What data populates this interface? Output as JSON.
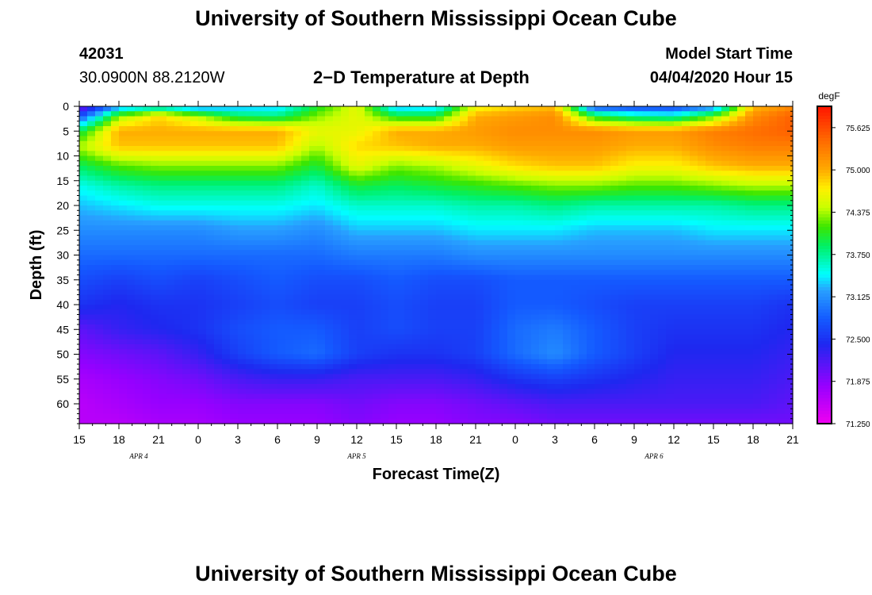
{
  "page": {
    "title_top": "University of Southern Mississippi Ocean Cube",
    "title_bottom": "University of Southern Mississippi Ocean Cube",
    "station_id": "42031",
    "station_coords": "30.0900N 88.2120W",
    "plot_title": "2−D Temperature at Depth",
    "model_start_label": "Model Start Time",
    "model_start_value": "04/04/2020 Hour 15"
  },
  "chart_data": {
    "type": "heatmap",
    "title": "2−D Temperature at Depth",
    "xlabel": "Forecast Time(Z)",
    "ylabel": "Depth (ft)",
    "x_ticks": [
      "15",
      "18",
      "21",
      "0",
      "3",
      "6",
      "9",
      "12",
      "15",
      "18",
      "21",
      "0",
      "3",
      "6",
      "9",
      "12",
      "15",
      "18",
      "21"
    ],
    "x_hours": [
      0,
      3,
      6,
      9,
      12,
      15,
      18,
      21,
      24,
      27,
      30,
      33,
      36,
      39,
      42,
      45,
      48,
      51,
      54
    ],
    "date_labels": [
      {
        "text": "APR 4",
        "hour": 4.5
      },
      {
        "text": "APR 5",
        "hour": 21
      },
      {
        "text": "APR 6",
        "hour": 43.5
      }
    ],
    "y_ticks": [
      0,
      5,
      10,
      15,
      20,
      25,
      30,
      35,
      40,
      45,
      50,
      55,
      60
    ],
    "ylim": [
      0,
      64
    ],
    "xlim": [
      0,
      54
    ],
    "colorbar": {
      "unit": "degF",
      "ticks": [
        "75.625",
        "75.000",
        "74.375",
        "73.750",
        "73.125",
        "72.500",
        "71.875",
        "71.250"
      ],
      "range": [
        71.25,
        75.94
      ]
    },
    "time_hours": [
      0,
      3,
      6,
      9,
      12,
      15,
      18,
      21,
      24,
      27,
      30,
      33,
      36,
      39,
      42,
      45,
      48,
      51,
      54
    ],
    "depths_ft": [
      0,
      2,
      5,
      8,
      12,
      16,
      20,
      25,
      30,
      35,
      40,
      45,
      50,
      55,
      60,
      64
    ],
    "temperature_degF": [
      [
        71.9,
        73.1,
        73.4,
        73.0,
        73.2,
        73.3,
        74.0,
        74.6,
        73.2,
        73.3,
        74.6,
        74.8,
        74.9,
        72.7,
        72.6,
        72.6,
        73.0,
        74.9,
        75.2
      ],
      [
        72.7,
        74.3,
        74.8,
        74.4,
        73.9,
        73.8,
        74.3,
        74.6,
        74.0,
        74.0,
        75.0,
        75.1,
        75.2,
        74.0,
        73.7,
        73.6,
        74.2,
        75.2,
        75.5
      ],
      [
        73.9,
        75.0,
        75.0,
        75.0,
        75.0,
        75.0,
        74.6,
        74.6,
        75.0,
        75.0,
        75.1,
        75.2,
        75.2,
        75.2,
        75.1,
        75.1,
        75.3,
        75.4,
        75.5
      ],
      [
        74.4,
        74.9,
        74.9,
        74.9,
        74.9,
        74.9,
        74.4,
        74.8,
        74.9,
        75.0,
        75.0,
        75.1,
        75.1,
        75.1,
        75.0,
        75.0,
        75.2,
        75.3,
        75.3
      ],
      [
        73.9,
        74.2,
        74.3,
        74.3,
        74.3,
        74.3,
        74.0,
        74.6,
        74.3,
        74.4,
        74.6,
        74.8,
        74.9,
        74.9,
        74.7,
        74.7,
        74.9,
        75.0,
        75.0
      ],
      [
        73.5,
        73.7,
        73.8,
        73.8,
        73.8,
        73.8,
        73.6,
        74.0,
        73.9,
        74.0,
        74.1,
        74.2,
        74.3,
        74.3,
        74.2,
        74.2,
        74.3,
        74.4,
        74.4
      ],
      [
        73.3,
        73.4,
        73.5,
        73.5,
        73.5,
        73.5,
        73.4,
        73.6,
        73.6,
        73.6,
        73.7,
        73.7,
        73.8,
        73.7,
        73.7,
        73.7,
        73.7,
        73.8,
        73.8
      ],
      [
        73.1,
        73.1,
        73.1,
        73.1,
        73.2,
        73.2,
        73.1,
        73.3,
        73.3,
        73.3,
        73.4,
        73.4,
        73.4,
        73.3,
        73.3,
        73.3,
        73.4,
        73.4,
        73.4
      ],
      [
        72.9,
        72.9,
        72.9,
        72.9,
        72.9,
        72.9,
        72.9,
        73.0,
        73.0,
        73.0,
        73.1,
        73.1,
        73.1,
        73.1,
        73.1,
        73.1,
        73.1,
        73.1,
        73.1
      ],
      [
        72.7,
        72.6,
        72.7,
        72.6,
        72.7,
        72.8,
        72.7,
        72.7,
        72.8,
        72.7,
        72.7,
        72.8,
        72.8,
        72.8,
        72.8,
        72.8,
        72.8,
        72.8,
        72.8
      ],
      [
        72.5,
        72.4,
        72.5,
        72.5,
        72.6,
        72.7,
        72.6,
        72.6,
        72.7,
        72.6,
        72.6,
        72.8,
        72.8,
        72.7,
        72.6,
        72.6,
        72.6,
        72.6,
        72.5
      ],
      [
        72.1,
        72.3,
        72.4,
        72.5,
        72.7,
        72.8,
        72.8,
        72.6,
        72.7,
        72.6,
        72.6,
        72.9,
        73.0,
        72.8,
        72.6,
        72.5,
        72.5,
        72.5,
        72.4
      ],
      [
        71.9,
        72.0,
        72.1,
        72.3,
        72.6,
        72.8,
        72.9,
        72.6,
        72.5,
        72.5,
        72.6,
        72.9,
        73.1,
        72.8,
        72.6,
        72.4,
        72.4,
        72.4,
        72.3
      ],
      [
        71.7,
        71.8,
        71.9,
        72.0,
        72.2,
        72.3,
        72.3,
        72.2,
        72.2,
        72.2,
        72.3,
        72.5,
        72.6,
        72.5,
        72.4,
        72.3,
        72.3,
        72.3,
        72.2
      ],
      [
        71.6,
        71.7,
        71.8,
        71.8,
        71.9,
        71.9,
        71.9,
        72.0,
        71.9,
        71.9,
        72.0,
        72.1,
        72.2,
        72.2,
        72.2,
        72.2,
        72.2,
        72.2,
        72.1
      ],
      [
        71.6,
        71.6,
        71.7,
        71.7,
        71.8,
        71.8,
        71.8,
        71.9,
        71.8,
        71.8,
        71.9,
        71.9,
        72.0,
        72.0,
        72.0,
        72.0,
        72.0,
        72.0,
        72.0
      ]
    ]
  }
}
